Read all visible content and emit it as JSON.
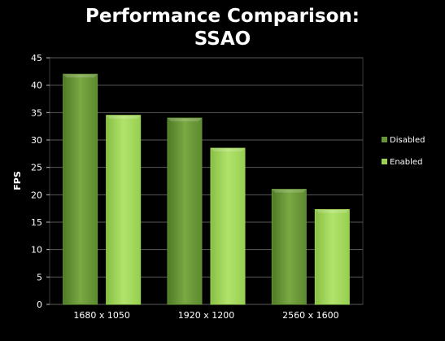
{
  "chart_data": {
    "type": "bar",
    "title_line1": "Performance Comparison:",
    "title_line2": "SSAO",
    "xlabel": "",
    "ylabel": "FPS",
    "ylim": [
      0,
      45
    ],
    "yticks": [
      "0",
      "5",
      "10",
      "15",
      "20",
      "25",
      "30",
      "35",
      "40",
      "45"
    ],
    "grid": true,
    "legend_position": "right",
    "categories": [
      "1680 x 1050",
      "1920 x 1200",
      "2560 x 1600"
    ],
    "series": [
      {
        "name": "Disabled",
        "values": [
          42,
          34,
          21
        ],
        "color": "#679436"
      },
      {
        "name": "Enabled",
        "values": [
          34.5,
          28.5,
          17.3
        ],
        "color": "#9bd152"
      }
    ]
  },
  "colors": {
    "background": "#000000",
    "plot_border": "#3a3a3a",
    "grid": "#5a5a5a",
    "text": "#ffffff"
  }
}
